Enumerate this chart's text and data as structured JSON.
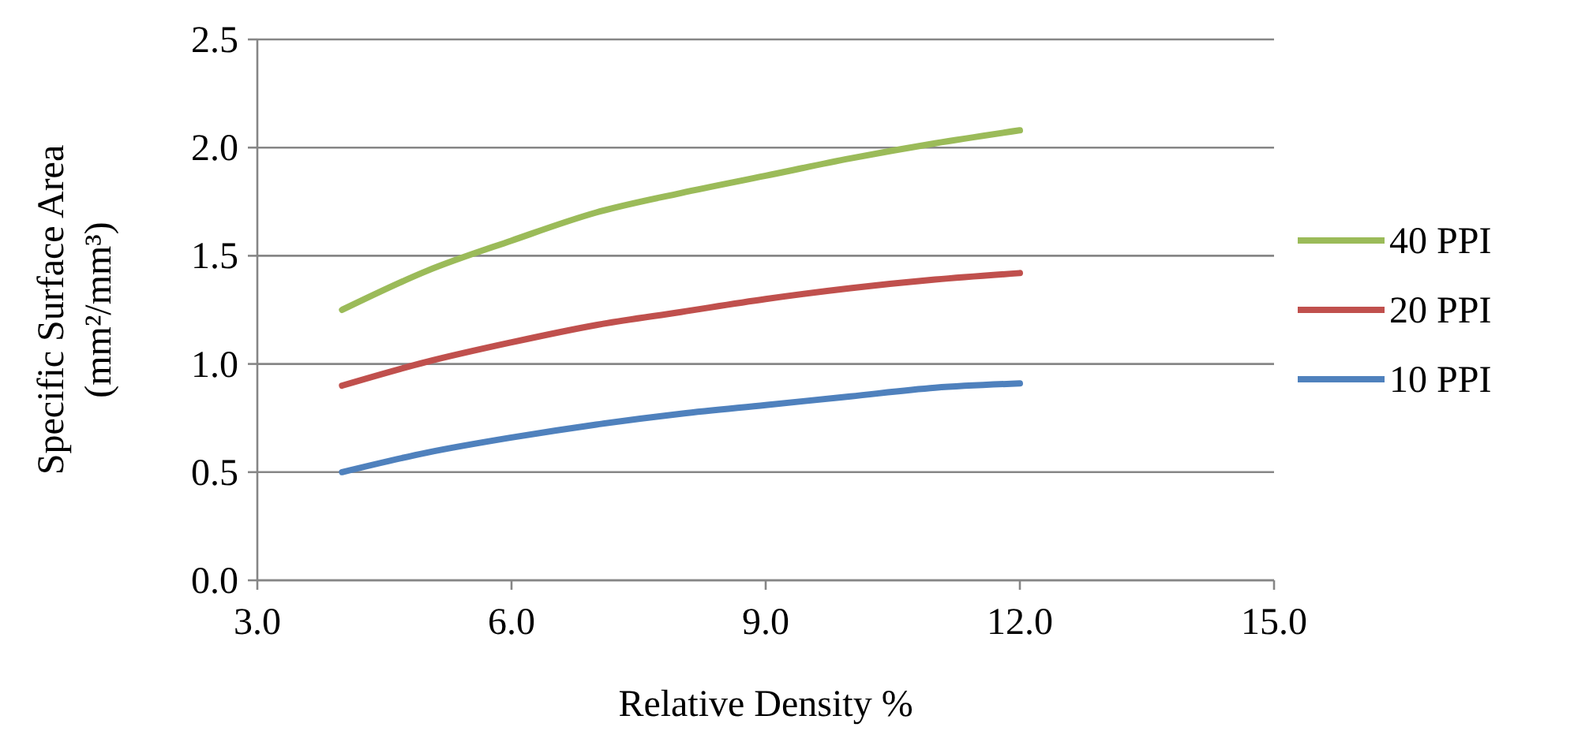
{
  "chart_data": {
    "type": "line",
    "xlabel": "Relative Density %",
    "ylabel": "Specific Surface Area\n(mm²/mm³)",
    "xlim": [
      3,
      15
    ],
    "xticks": [
      {
        "value": 3,
        "label": "3.0"
      },
      {
        "value": 6,
        "label": "6.0"
      },
      {
        "value": 9,
        "label": "9.0"
      },
      {
        "value": 12,
        "label": "12.0"
      },
      {
        "value": 15,
        "label": "15.0"
      }
    ],
    "ylim": [
      0,
      2.5
    ],
    "yticks": [
      {
        "value": 0,
        "label": "0.0"
      },
      {
        "value": 0.5,
        "label": "0.5"
      },
      {
        "value": 1,
        "label": "1.0"
      },
      {
        "value": 1.5,
        "label": "1.5"
      },
      {
        "value": 2,
        "label": "2.0"
      },
      {
        "value": 2.5,
        "label": "2.5"
      }
    ],
    "grid": "y",
    "legend": "right",
    "marker": "none",
    "line_style": "solid",
    "x": [
      4,
      5,
      6,
      7,
      8,
      9,
      10,
      11,
      12
    ],
    "series": [
      {
        "name": "40 PPI",
        "color": "#9bbb59",
        "values": [
          1.25,
          1.43,
          1.57,
          1.7,
          1.79,
          1.87,
          1.95,
          2.02,
          2.08
        ]
      },
      {
        "name": "20 PPI",
        "color": "#c0504d",
        "values": [
          0.9,
          1.01,
          1.1,
          1.18,
          1.24,
          1.3,
          1.35,
          1.39,
          1.42
        ]
      },
      {
        "name": "10 PPI",
        "color": "#4f81bd",
        "values": [
          0.5,
          0.59,
          0.66,
          0.72,
          0.77,
          0.81,
          0.85,
          0.89,
          0.91
        ]
      }
    ]
  }
}
